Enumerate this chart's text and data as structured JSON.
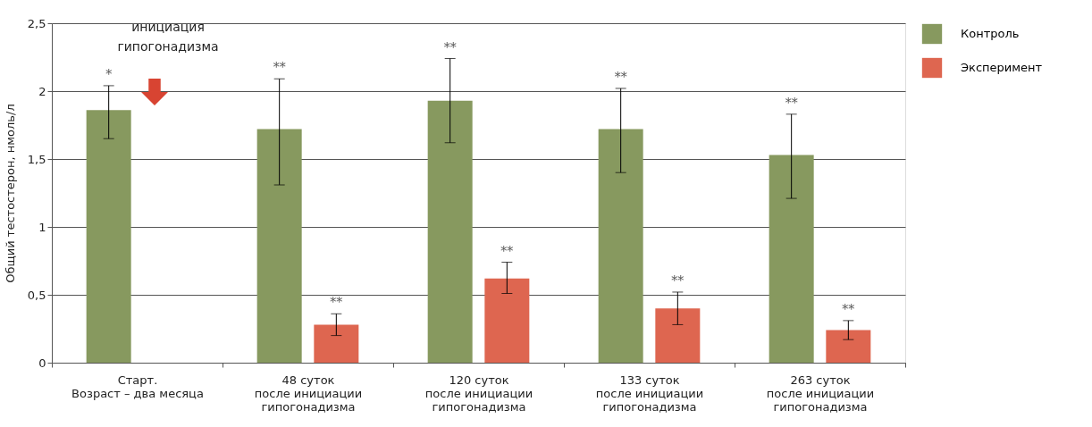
{
  "chart_data": {
    "type": "bar",
    "ylabel": "Общий тестостерон, нмоль/л",
    "categories": [
      "Старт.\nВозраст – два месяца",
      "48 суток\nпосле инициации\nгипогонадизма",
      "120 суток\nпосле инициации\nгипогонадизма",
      "133 суток\nпосле инициации\nгипогонадизма",
      "263 суток\nпосле инициации\nгипогонадизма"
    ],
    "series": [
      {
        "name": "Контроль",
        "color": "#87995f",
        "values": [
          1.86,
          1.72,
          1.93,
          1.72,
          1.53
        ],
        "errors": [
          [
            1.65,
            2.04
          ],
          [
            1.31,
            2.09
          ],
          [
            1.62,
            2.24
          ],
          [
            1.4,
            2.02
          ],
          [
            1.21,
            1.83
          ]
        ]
      },
      {
        "name": "Эксперимент",
        "color": "#de6650",
        "values": [
          null,
          0.28,
          0.62,
          0.4,
          0.24
        ],
        "errors": [
          null,
          [
            0.2,
            0.36
          ],
          [
            0.51,
            0.74
          ],
          [
            0.28,
            0.52
          ],
          [
            0.17,
            0.31
          ]
        ]
      }
    ],
    "ylim": [
      0,
      2.5
    ],
    "yticks": [
      0,
      {
        "value": 0.5,
        "label": "0,5"
      },
      1,
      {
        "value": 1.5,
        "label": "1,5"
      },
      2,
      {
        "value": 2.5,
        "label": "2,5"
      }
    ],
    "grid": "y",
    "legend": "right",
    "annotations": [
      "инициация\nгипогонадизма",
      "*",
      "**",
      "**",
      "**",
      "**",
      "**",
      "**",
      "**",
      "**"
    ]
  }
}
